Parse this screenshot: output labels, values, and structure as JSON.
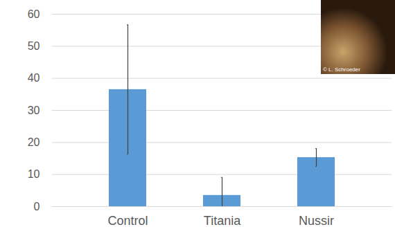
{
  "chart_data": {
    "type": "bar",
    "categories": [
      "Control",
      "Titania",
      "Nussir"
    ],
    "values": [
      36.5,
      3.5,
      15.3
    ],
    "errors": [
      20.2,
      5.6,
      2.8
    ],
    "color": "#5b9bd5",
    "ylim": [
      0,
      60
    ],
    "yticks": [
      0,
      10,
      20,
      30,
      40,
      50,
      60
    ],
    "grid": true,
    "annotations": [
      "© L. Schroeder"
    ]
  }
}
